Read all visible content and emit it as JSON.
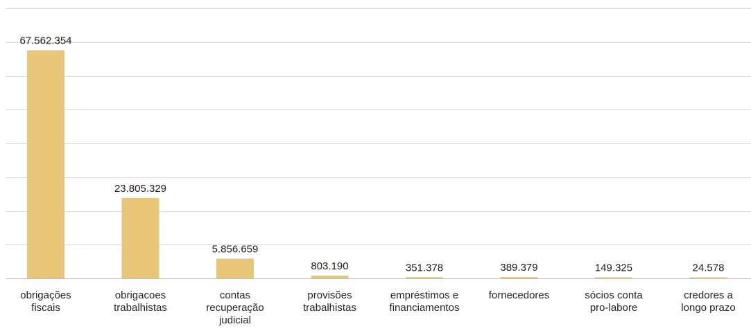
{
  "chart_data": {
    "type": "bar",
    "categories": [
      [
        "obrigações",
        "fiscais"
      ],
      [
        "obrigacoes",
        "trabalhistas"
      ],
      [
        "contas",
        "recuperação",
        "judicial"
      ],
      [
        "provisões",
        "trabalhistas"
      ],
      [
        "empréstimos e",
        "financiamentos"
      ],
      [
        "fornecedores"
      ],
      [
        "sócios conta",
        "pro-labore"
      ],
      [
        "credores a",
        "longo prazo"
      ]
    ],
    "values": [
      67562354,
      23805329,
      5856659,
      803190,
      351378,
      389379,
      149325,
      24578
    ],
    "data_labels": [
      "67.562.354",
      "23.805.329",
      "5.856.659",
      "803.190",
      "351.378",
      "389.379",
      "149.325",
      "24.578"
    ],
    "ylim": [
      0,
      80000000
    ],
    "grid": true,
    "legend": "none",
    "bar_color": "#E8C779",
    "title": "",
    "xlabel": "",
    "ylabel": ""
  }
}
